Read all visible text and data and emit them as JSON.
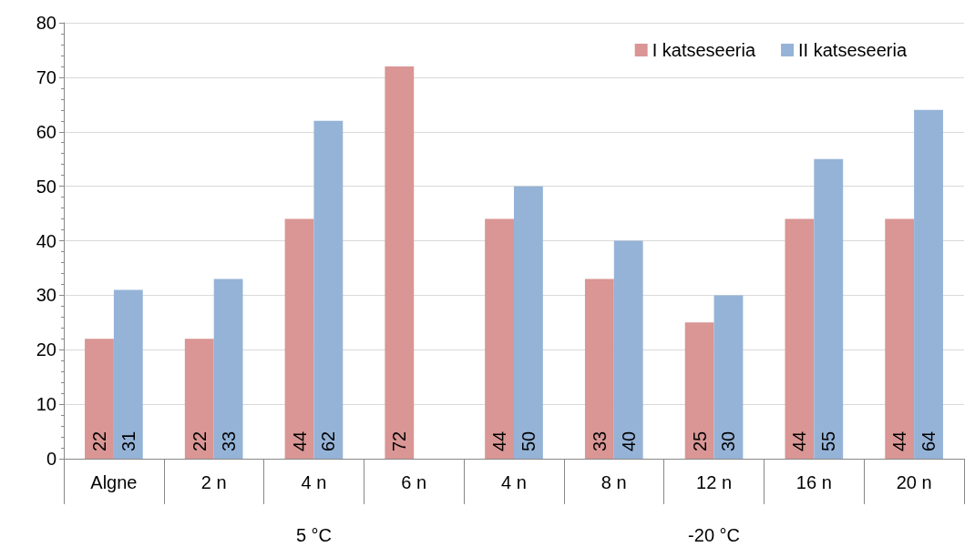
{
  "chart_data": {
    "type": "bar",
    "categories": [
      "Algne",
      "2 n",
      "4 n",
      "6 n",
      "4 n",
      "8 n",
      "12 n",
      "16 n",
      "20 n"
    ],
    "series": [
      {
        "name": "I katseseeria",
        "color": "#d99694",
        "values": [
          22,
          22,
          44,
          72,
          44,
          33,
          25,
          44,
          44
        ]
      },
      {
        "name": "II katseseeria",
        "color": "#95b3d7",
        "values": [
          31,
          33,
          62,
          null,
          50,
          40,
          30,
          55,
          64
        ]
      }
    ],
    "ylim": [
      0,
      80
    ],
    "yticks": [
      0,
      10,
      20,
      30,
      40,
      50,
      60,
      70,
      80
    ],
    "grid": "y",
    "legend": "top right",
    "data_labels": true,
    "annotations": [
      "5 °C",
      "-20 °C"
    ]
  }
}
